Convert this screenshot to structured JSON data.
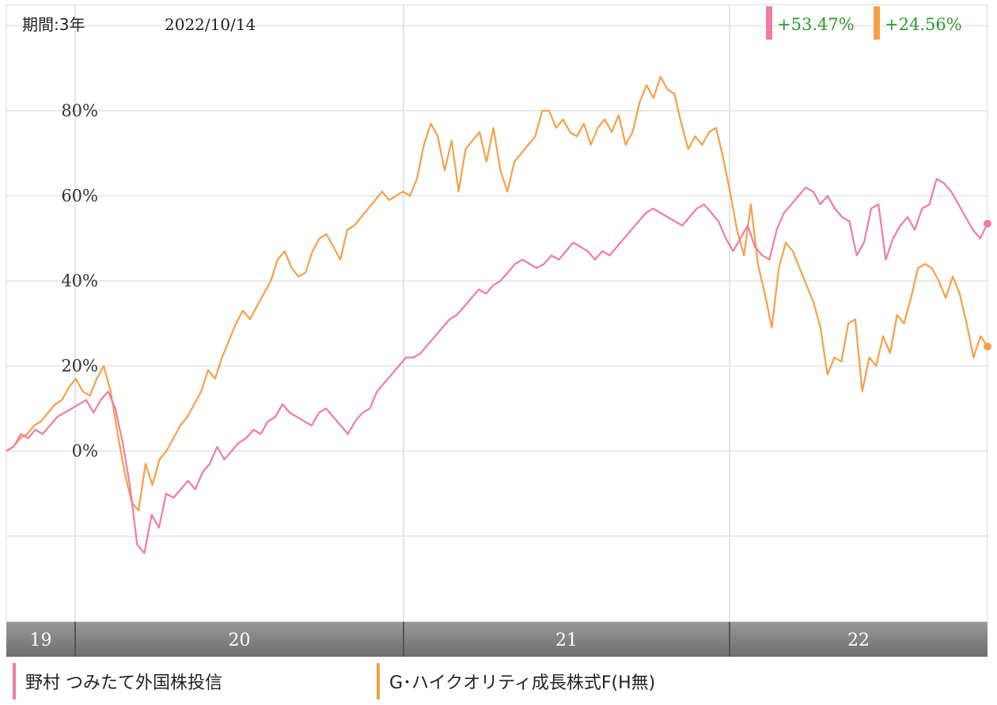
{
  "header": {
    "period_label": "期間:3年",
    "date": "2022/10/14",
    "returns": [
      {
        "value": "+53.47%",
        "marker_color": "#f07ca4"
      },
      {
        "value": "+24.56%",
        "marker_color": "#f5a04a"
      }
    ]
  },
  "legend": [
    {
      "label": "野村 つみたて外国株投信",
      "color": "#f07ca4"
    },
    {
      "label": "G･ハイクオリティ成長株式F(H無)",
      "color": "#f5a04a"
    }
  ],
  "colors": {
    "series1": "#f07ca4",
    "series2": "#f5a04a",
    "gain_text": "#2a9a2a",
    "grid": "#e4e4e4",
    "axis_band": "#8a8a8a"
  },
  "chart_data": {
    "type": "line",
    "title": "",
    "period": "3年",
    "end_date": "2022/10/14",
    "x_labels": [
      "19",
      "20",
      "21",
      "22"
    ],
    "ylim": [
      -40,
      105
    ],
    "y_ticks": [
      {
        "value": 0,
        "label": "0%"
      },
      {
        "value": 20,
        "label": "20%"
      },
      {
        "value": 40,
        "label": "40%"
      },
      {
        "value": 60,
        "label": "60%"
      },
      {
        "value": 80,
        "label": "80%"
      }
    ],
    "grid": true,
    "series": [
      {
        "name": "野村 つみたて外国株投信",
        "color": "#f07ca4",
        "last_value": 53.47,
        "values": [
          0,
          1,
          4,
          3,
          5,
          4,
          6,
          8,
          9,
          10,
          11,
          12,
          9,
          12,
          14,
          10,
          2,
          -8,
          -22,
          -24,
          -15,
          -18,
          -10,
          -11,
          -9,
          -7,
          -9,
          -5,
          -3,
          1,
          -2,
          0,
          2,
          3,
          5,
          4,
          7,
          8,
          11,
          9,
          8,
          7,
          6,
          9,
          10,
          8,
          6,
          4,
          7,
          9,
          10,
          14,
          16,
          18,
          20,
          22,
          22,
          23,
          25,
          27,
          29,
          31,
          32,
          34,
          36,
          38,
          37,
          39,
          40,
          42,
          44,
          45,
          44,
          43,
          44,
          46,
          45,
          47,
          49,
          48,
          47,
          45,
          47,
          46,
          48,
          50,
          52,
          54,
          56,
          57,
          56,
          55,
          54,
          53,
          55,
          57,
          58,
          56,
          54,
          50,
          47,
          50,
          53,
          48,
          46,
          45,
          52,
          56,
          58,
          60,
          62,
          61,
          58,
          60,
          57,
          55,
          54,
          46,
          49,
          57,
          58,
          45,
          50,
          53,
          55,
          52,
          57,
          58,
          64,
          63,
          61,
          58,
          55,
          52,
          50,
          53.47
        ]
      },
      {
        "name": "G･ハイクオリティ成長株式F(H無)",
        "color": "#f5a04a",
        "last_value": 24.56,
        "values": [
          0,
          1,
          3,
          4,
          6,
          7,
          9,
          11,
          12,
          15,
          17,
          14,
          13,
          17,
          20,
          14,
          4,
          -5,
          -12,
          -14,
          -3,
          -8,
          -2,
          0,
          3,
          6,
          8,
          11,
          14,
          19,
          17,
          22,
          26,
          30,
          33,
          31,
          34,
          37,
          40,
          45,
          47,
          43,
          41,
          42,
          47,
          50,
          51,
          48,
          45,
          52,
          53,
          55,
          57,
          59,
          61,
          59,
          60,
          61,
          60,
          64,
          72,
          77,
          74,
          66,
          73,
          61,
          71,
          73,
          75,
          68,
          76,
          66,
          61,
          68,
          70,
          72,
          74,
          80,
          80,
          76,
          78,
          75,
          74,
          77,
          72,
          76,
          78,
          75,
          79,
          72,
          75,
          82,
          86,
          83,
          88,
          85,
          84,
          77,
          71,
          74,
          72,
          75,
          76,
          69,
          61,
          52,
          46,
          58,
          44,
          37,
          29,
          43,
          49,
          47,
          43,
          39,
          35,
          29,
          18,
          22,
          21,
          30,
          31,
          14,
          22,
          20,
          27,
          23,
          32,
          30,
          36,
          43,
          44,
          43,
          40,
          36,
          41,
          37,
          30,
          22,
          27,
          24.56
        ]
      }
    ]
  }
}
